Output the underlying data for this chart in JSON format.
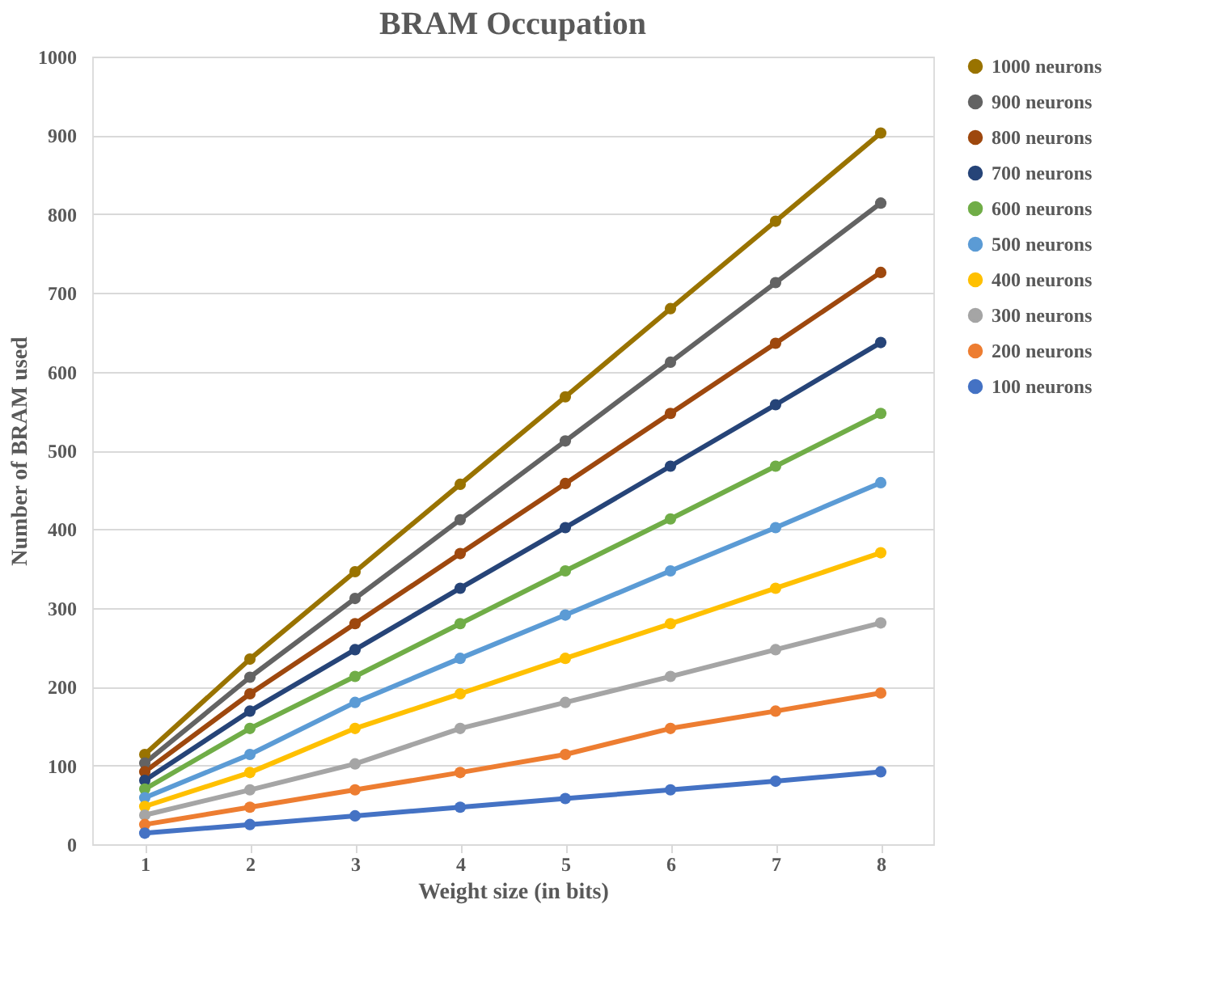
{
  "chart_data": {
    "type": "line",
    "title": "BRAM Occupation",
    "xlabel": "Weight size (in bits)",
    "ylabel": "Number of BRAM used",
    "categories": [
      "1",
      "2",
      "3",
      "4",
      "5",
      "6",
      "7",
      "8"
    ],
    "ylim": [
      0,
      1000
    ],
    "yticks": [
      0,
      100,
      200,
      300,
      400,
      500,
      600,
      700,
      800,
      900,
      1000
    ],
    "grid": "y",
    "legend": "right",
    "marker": "circle",
    "line_style": "solid",
    "series": [
      {
        "name": "1000 neurons",
        "color": "#997300",
        "values": [
          114,
          235,
          346,
          457,
          568,
          680,
          791,
          903
        ]
      },
      {
        "name": "900 neurons",
        "color": "#636363",
        "values": [
          103,
          212,
          312,
          412,
          512,
          612,
          713,
          814
        ]
      },
      {
        "name": "800 neurons",
        "color": "#9e480e",
        "values": [
          92,
          191,
          280,
          369,
          458,
          547,
          636,
          726
        ]
      },
      {
        "name": "700 neurons",
        "color": "#264478",
        "values": [
          81,
          169,
          247,
          325,
          402,
          480,
          558,
          637
        ]
      },
      {
        "name": "600 neurons",
        "color": "#70ad47",
        "values": [
          70,
          147,
          213,
          280,
          347,
          413,
          480,
          547
        ]
      },
      {
        "name": "500 neurons",
        "color": "#5b9bd5",
        "values": [
          59,
          114,
          180,
          236,
          291,
          347,
          402,
          459
        ]
      },
      {
        "name": "400 neurons",
        "color": "#ffc000",
        "values": [
          48,
          91,
          147,
          191,
          236,
          280,
          325,
          370
        ]
      },
      {
        "name": "300 neurons",
        "color": "#a5a5a5",
        "values": [
          37,
          69,
          102,
          147,
          180,
          213,
          247,
          281
        ]
      },
      {
        "name": "200 neurons",
        "color": "#ed7d31",
        "values": [
          25,
          47,
          69,
          91,
          114,
          147,
          169,
          192
        ]
      },
      {
        "name": "100 neurons",
        "color": "#4472c4",
        "values": [
          14,
          25,
          36,
          47,
          58,
          69,
          80,
          92
        ]
      }
    ]
  }
}
